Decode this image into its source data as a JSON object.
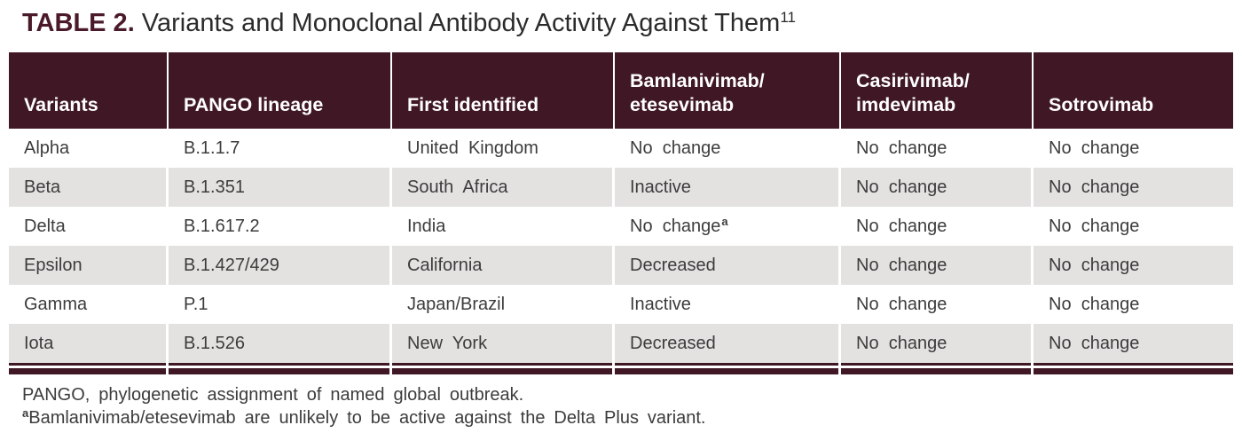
{
  "title": {
    "label": "TABLE 2.",
    "text": " Variants and Monoclonal Antibody Activity Against Them",
    "reference": "11"
  },
  "table": {
    "columns": [
      "Variants",
      "PANGO lineage",
      "First identified",
      "Bamlanivimab/\netesevimab",
      "Casirivimab/\nimdevimab",
      "Sotrovimab"
    ],
    "rows": [
      {
        "variant": "Alpha",
        "pango_lineage": "B.1.1.7",
        "first_identified": "United Kingdom",
        "bamlanivimab_etesevimab": "No change",
        "casirivimab_imdevimab": "No change",
        "sotrovimab": "No change"
      },
      {
        "variant": "Beta",
        "pango_lineage": "B.1.351",
        "first_identified": "South Africa",
        "bamlanivimab_etesevimab": "Inactive",
        "casirivimab_imdevimab": "No change",
        "sotrovimab": "No change"
      },
      {
        "variant": "Delta",
        "pango_lineage": "B.1.617.2",
        "first_identified": "India",
        "bamlanivimab_etesevimab": "No change",
        "bamlanivimab_note": "a",
        "casirivimab_imdevimab": "No change",
        "sotrovimab": "No change"
      },
      {
        "variant": "Epsilon",
        "pango_lineage": "B.1.427/429",
        "first_identified": "California",
        "bamlanivimab_etesevimab": "Decreased",
        "casirivimab_imdevimab": "No change",
        "sotrovimab": "No change"
      },
      {
        "variant": "Gamma",
        "pango_lineage": "P.1",
        "first_identified": "Japan/Brazil",
        "bamlanivimab_etesevimab": "Inactive",
        "casirivimab_imdevimab": "No change",
        "sotrovimab": "No change"
      },
      {
        "variant": "Iota",
        "pango_lineage": "B.1.526",
        "first_identified": "New York",
        "bamlanivimab_etesevimab": "Decreased",
        "casirivimab_imdevimab": "No change",
        "sotrovimab": "No change"
      }
    ]
  },
  "footnotes": {
    "abbreviation": "PANGO, phylogenetic assignment of named global outbreak.",
    "note_marker": "a",
    "note_text": "Bamlanivimab/etesevimab are unlikely to be active against the Delta Plus variant."
  },
  "colors": {
    "maroon": "#3F1725",
    "row_alt": "#E3E2E1",
    "header_text": "#FFFFFF",
    "body_text": "#3C3C3C"
  }
}
